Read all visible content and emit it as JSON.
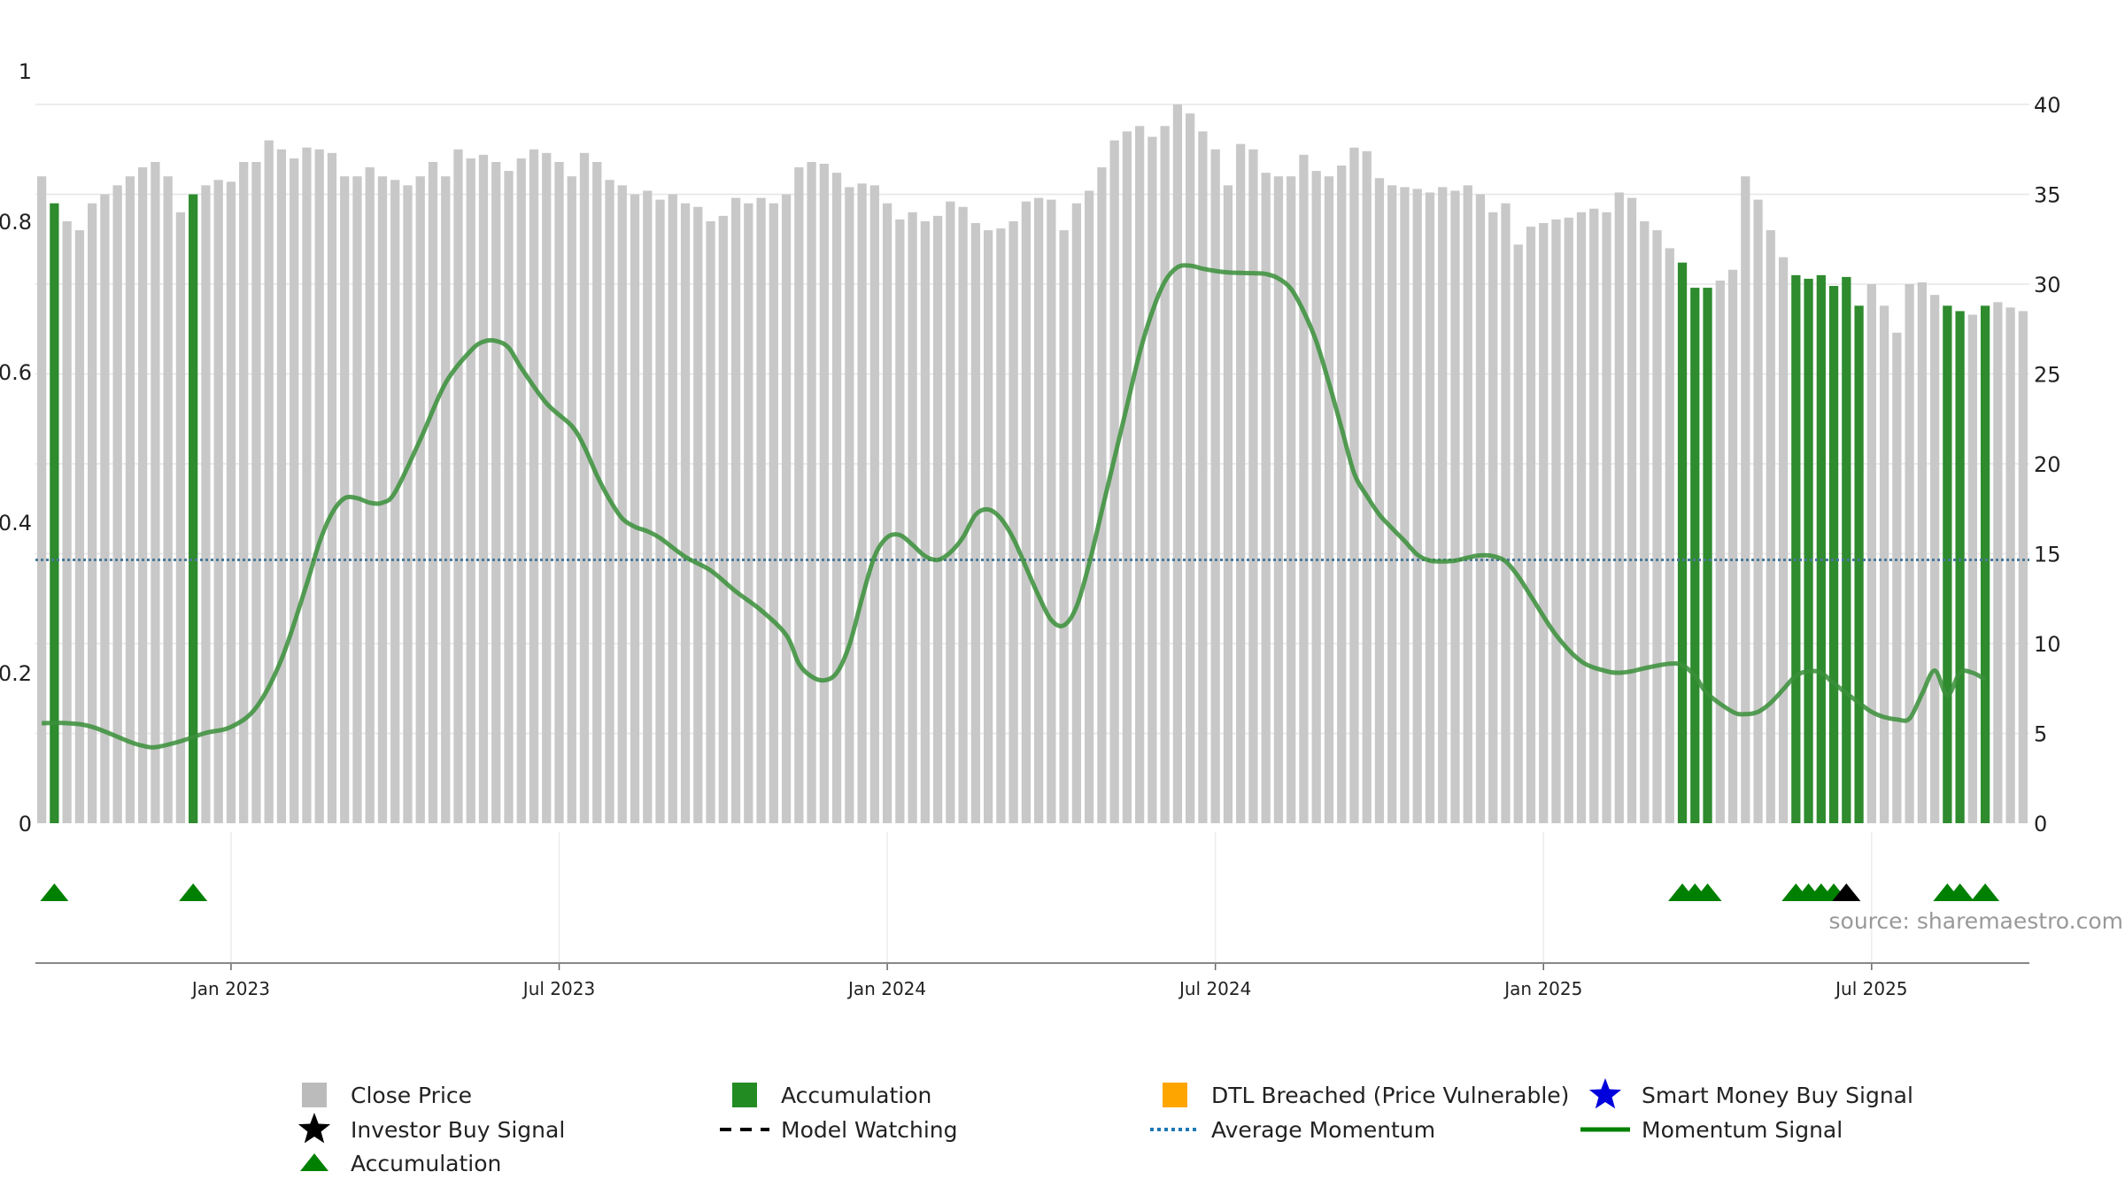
{
  "chart_data": {
    "type": "bar",
    "title": "",
    "source_text": "source: sharemaestro.com",
    "left_axis": {
      "ticks": [
        "0",
        "0.2",
        "0.4",
        "0.6",
        "0.8",
        "1"
      ],
      "range": [
        0,
        1
      ]
    },
    "right_axis": {
      "ticks": [
        "0",
        "5",
        "10",
        "15",
        "20",
        "25",
        "30",
        "35",
        "40"
      ],
      "range": [
        0,
        40
      ]
    },
    "x_ticks": [
      {
        "label": "Jan 2023",
        "index": 15
      },
      {
        "label": "Jul 2023",
        "index": 41
      },
      {
        "label": "Jan 2024",
        "index": 67
      },
      {
        "label": "Jul 2024",
        "index": 93
      },
      {
        "label": "Jan 2025",
        "index": 119
      },
      {
        "label": "Jul 2025",
        "index": 145
      }
    ],
    "close_prices": [
      36,
      34.5,
      33.5,
      33,
      34.5,
      35,
      35.5,
      36,
      36.5,
      36.8,
      36,
      34,
      35,
      35.5,
      35.8,
      35.7,
      36.8,
      36.8,
      38,
      37.5,
      37,
      37.6,
      37.5,
      37.3,
      36,
      36,
      36.5,
      36,
      35.8,
      35.5,
      36,
      36.8,
      36,
      37.5,
      37,
      37.2,
      36.8,
      36.3,
      37,
      37.5,
      37.3,
      36.8,
      36,
      37.3,
      36.8,
      35.8,
      35.5,
      35,
      35.2,
      34.7,
      35,
      34.5,
      34.3,
      33.5,
      33.8,
      34.8,
      34.5,
      34.8,
      34.5,
      35,
      36.5,
      36.8,
      36.7,
      36.2,
      35.4,
      35.6,
      35.5,
      34.5,
      33.6,
      34,
      33.5,
      33.8,
      34.6,
      34.3,
      33.4,
      33,
      33.1,
      33.5,
      34.6,
      34.8,
      34.7,
      33,
      34.5,
      35.2,
      36.5,
      38,
      38.5,
      38.8,
      38.2,
      38.8,
      40,
      39.5,
      38.5,
      37.5,
      35.5,
      37.8,
      37.5,
      36.2,
      36,
      36,
      37.2,
      36.3,
      36,
      36.6,
      37.6,
      37.4,
      35.9,
      35.5,
      35.4,
      35.3,
      35.1,
      35.4,
      35.2,
      35.5,
      35,
      34,
      34.5,
      32.2,
      33.2,
      33.4,
      33.6,
      33.7,
      34,
      34.2,
      34,
      35.1,
      34.8,
      33.5,
      33,
      32,
      31.2,
      29.8,
      29.8,
      30.2,
      30.8,
      36,
      34.7,
      33,
      31.5,
      30.5,
      30.3,
      30.5,
      29.9,
      30.4,
      28.8,
      30,
      28.8,
      27.3,
      30,
      30.1,
      29.4,
      28.8,
      28.5,
      28.3,
      28.8,
      29,
      28.7,
      28.5
    ],
    "accumulation_bar_indices": [
      1,
      12,
      130,
      131,
      132,
      139,
      140,
      141,
      142,
      143,
      144,
      151,
      152,
      154
    ],
    "accumulation_marker_indices": [
      1,
      12,
      130,
      131,
      132,
      139,
      140,
      141,
      142,
      151,
      152,
      154
    ],
    "investor_buy_marker_indices": [
      143
    ],
    "momentum_signal": [
      [
        0,
        0.133
      ],
      [
        2,
        0.133
      ],
      [
        4,
        0.128
      ],
      [
        7,
        0.108
      ],
      [
        8,
        0.103
      ],
      [
        9,
        0.101
      ],
      [
        11,
        0.109
      ],
      [
        13,
        0.12
      ],
      [
        15,
        0.128
      ],
      [
        17,
        0.154
      ],
      [
        19,
        0.218
      ],
      [
        21,
        0.318
      ],
      [
        22,
        0.373
      ],
      [
        23,
        0.412
      ],
      [
        24,
        0.432
      ],
      [
        25,
        0.432
      ],
      [
        26,
        0.426
      ],
      [
        27,
        0.426
      ],
      [
        28,
        0.44
      ],
      [
        30,
        0.51
      ],
      [
        32,
        0.585
      ],
      [
        34,
        0.628
      ],
      [
        35,
        0.64
      ],
      [
        36,
        0.641
      ],
      [
        37,
        0.632
      ],
      [
        38,
        0.605
      ],
      [
        40,
        0.558
      ],
      [
        42,
        0.528
      ],
      [
        43,
        0.5
      ],
      [
        44,
        0.462
      ],
      [
        45,
        0.43
      ],
      [
        46,
        0.405
      ],
      [
        47,
        0.394
      ],
      [
        48,
        0.388
      ],
      [
        49,
        0.379
      ],
      [
        51,
        0.354
      ],
      [
        53,
        0.336
      ],
      [
        55,
        0.308
      ],
      [
        57,
        0.283
      ],
      [
        59,
        0.25
      ],
      [
        60,
        0.212
      ],
      [
        61,
        0.195
      ],
      [
        62,
        0.19
      ],
      [
        63,
        0.2
      ],
      [
        64,
        0.237
      ],
      [
        65,
        0.299
      ],
      [
        66,
        0.355
      ],
      [
        67,
        0.38
      ],
      [
        68,
        0.383
      ],
      [
        69,
        0.37
      ],
      [
        70,
        0.355
      ],
      [
        71,
        0.35
      ],
      [
        72,
        0.36
      ],
      [
        73,
        0.38
      ],
      [
        74,
        0.41
      ],
      [
        75,
        0.417
      ],
      [
        76,
        0.405
      ],
      [
        77,
        0.378
      ],
      [
        78,
        0.34
      ],
      [
        79,
        0.302
      ],
      [
        80,
        0.27
      ],
      [
        81,
        0.263
      ],
      [
        82,
        0.288
      ],
      [
        83,
        0.345
      ],
      [
        84,
        0.415
      ],
      [
        85,
        0.485
      ],
      [
        86,
        0.555
      ],
      [
        87,
        0.625
      ],
      [
        88,
        0.68
      ],
      [
        89,
        0.72
      ],
      [
        90,
        0.739
      ],
      [
        91,
        0.741
      ],
      [
        92,
        0.737
      ],
      [
        93,
        0.734
      ],
      [
        94,
        0.732
      ],
      [
        96,
        0.731
      ],
      [
        97,
        0.73
      ],
      [
        98,
        0.724
      ],
      [
        99,
        0.71
      ],
      [
        100,
        0.68
      ],
      [
        101,
        0.64
      ],
      [
        102,
        0.585
      ],
      [
        103,
        0.525
      ],
      [
        104,
        0.465
      ],
      [
        105,
        0.435
      ],
      [
        106,
        0.41
      ],
      [
        107,
        0.392
      ],
      [
        108,
        0.375
      ],
      [
        109,
        0.357
      ],
      [
        110,
        0.349
      ],
      [
        111,
        0.348
      ],
      [
        112,
        0.349
      ],
      [
        113,
        0.353
      ],
      [
        114,
        0.356
      ],
      [
        115,
        0.355
      ],
      [
        116,
        0.348
      ],
      [
        117,
        0.328
      ],
      [
        118,
        0.302
      ],
      [
        120,
        0.25
      ],
      [
        122,
        0.215
      ],
      [
        124,
        0.202
      ],
      [
        125,
        0.2
      ],
      [
        126,
        0.202
      ],
      [
        127,
        0.206
      ],
      [
        129,
        0.212
      ],
      [
        130,
        0.21
      ],
      [
        131,
        0.196
      ],
      [
        132,
        0.172
      ],
      [
        134,
        0.148
      ],
      [
        135,
        0.145
      ],
      [
        136,
        0.148
      ],
      [
        137,
        0.16
      ],
      [
        138,
        0.178
      ],
      [
        139,
        0.196
      ],
      [
        140,
        0.202
      ],
      [
        141,
        0.2
      ],
      [
        142,
        0.186
      ],
      [
        144,
        0.16
      ],
      [
        145,
        0.148
      ],
      [
        146,
        0.141
      ],
      [
        147,
        0.138
      ],
      [
        148,
        0.139
      ],
      [
        149,
        0.172
      ],
      [
        150,
        0.203
      ],
      [
        151,
        0.17
      ],
      [
        152,
        0.2
      ],
      [
        153,
        0.2
      ],
      [
        154,
        0.191
      ]
    ],
    "average_momentum": 0.35,
    "legend": [
      {
        "label": "Close Price",
        "symbol": "square",
        "color": "#bbbbbb"
      },
      {
        "label": "Accumulation",
        "symbol": "square",
        "color": "#228b22"
      },
      {
        "label": "DTL Breached (Price Vulnerable)",
        "symbol": "square",
        "color": "#ffa500"
      },
      {
        "label": "Smart Money Buy Signal",
        "symbol": "star",
        "color": "#0000dd"
      },
      {
        "label": "Investor Buy Signal",
        "symbol": "star",
        "color": "#000000"
      },
      {
        "label": "Model Watching",
        "symbol": "dash",
        "color": "#000000"
      },
      {
        "label": "Average Momentum",
        "symbol": "dots",
        "color": "#1f77b4"
      },
      {
        "label": "Momentum Signal",
        "symbol": "line",
        "color": "#008000"
      },
      {
        "label": "Accumulation",
        "symbol": "triangle",
        "color": "#008000"
      }
    ],
    "colors": {
      "close": "#c8c8c8",
      "accumulation": "#2e8b2e",
      "momentum": "#3a8f3a",
      "average": "#4a7a9a",
      "marker_green": "#008000",
      "marker_black": "#000000"
    }
  }
}
